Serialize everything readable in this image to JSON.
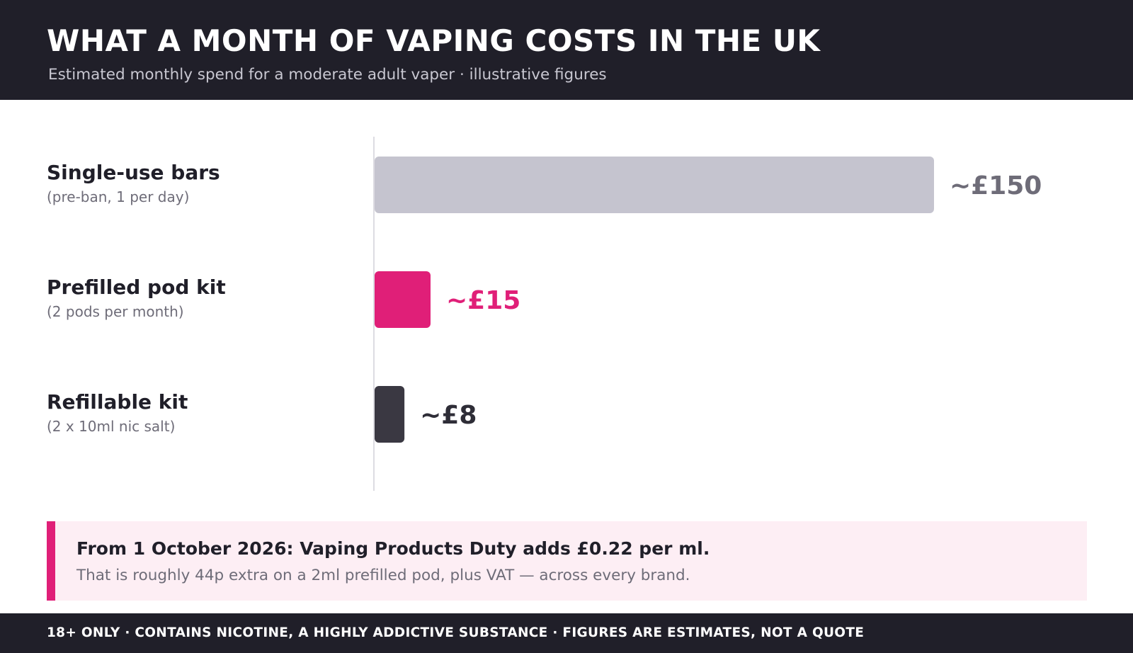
{
  "header": {
    "title": "WHAT A MONTH OF VAPING COSTS IN THE UK",
    "subtitle": "Estimated monthly spend for a moderate adult vaper  ·  illustrative figures"
  },
  "chart_data": {
    "type": "bar",
    "orientation": "horizontal",
    "title": "WHAT A MONTH OF VAPING COSTS IN THE UK",
    "subtitle": "Estimated monthly spend for a moderate adult vaper  ·  illustrative figures",
    "unit": "£ per month",
    "xlim": [
      0,
      150
    ],
    "grid": false,
    "categories": [
      {
        "label": "Single-use bars",
        "sublabel": "(pre-ban, 1 per day)",
        "value": 150,
        "value_label": "~£150",
        "color": "#c5c4cf",
        "label_color": "#6e6c78"
      },
      {
        "label": "Prefilled pod kit",
        "sublabel": "(2 pods per month)",
        "value": 15,
        "value_label": "~£15",
        "color": "#e01f78",
        "label_color": "#e01f78"
      },
      {
        "label": "Refillable kit",
        "sublabel": "(2 x 10ml nic salt)",
        "value": 8,
        "value_label": "~£8",
        "color": "#3a3842",
        "label_color": "#2e2d37"
      }
    ]
  },
  "callout": {
    "headline": "From 1 October 2026: Vaping Products Duty adds £0.22 per ml.",
    "body": "That is roughly 44p extra on a 2ml prefilled pod, plus VAT — across every brand.",
    "accent_color": "#e01f78"
  },
  "footer": {
    "text": "18+ ONLY  ·  CONTAINS NICOTINE, A HIGHLY ADDICTIVE SUBSTANCE  ·  FIGURES ARE ESTIMATES, NOT A QUOTE"
  }
}
